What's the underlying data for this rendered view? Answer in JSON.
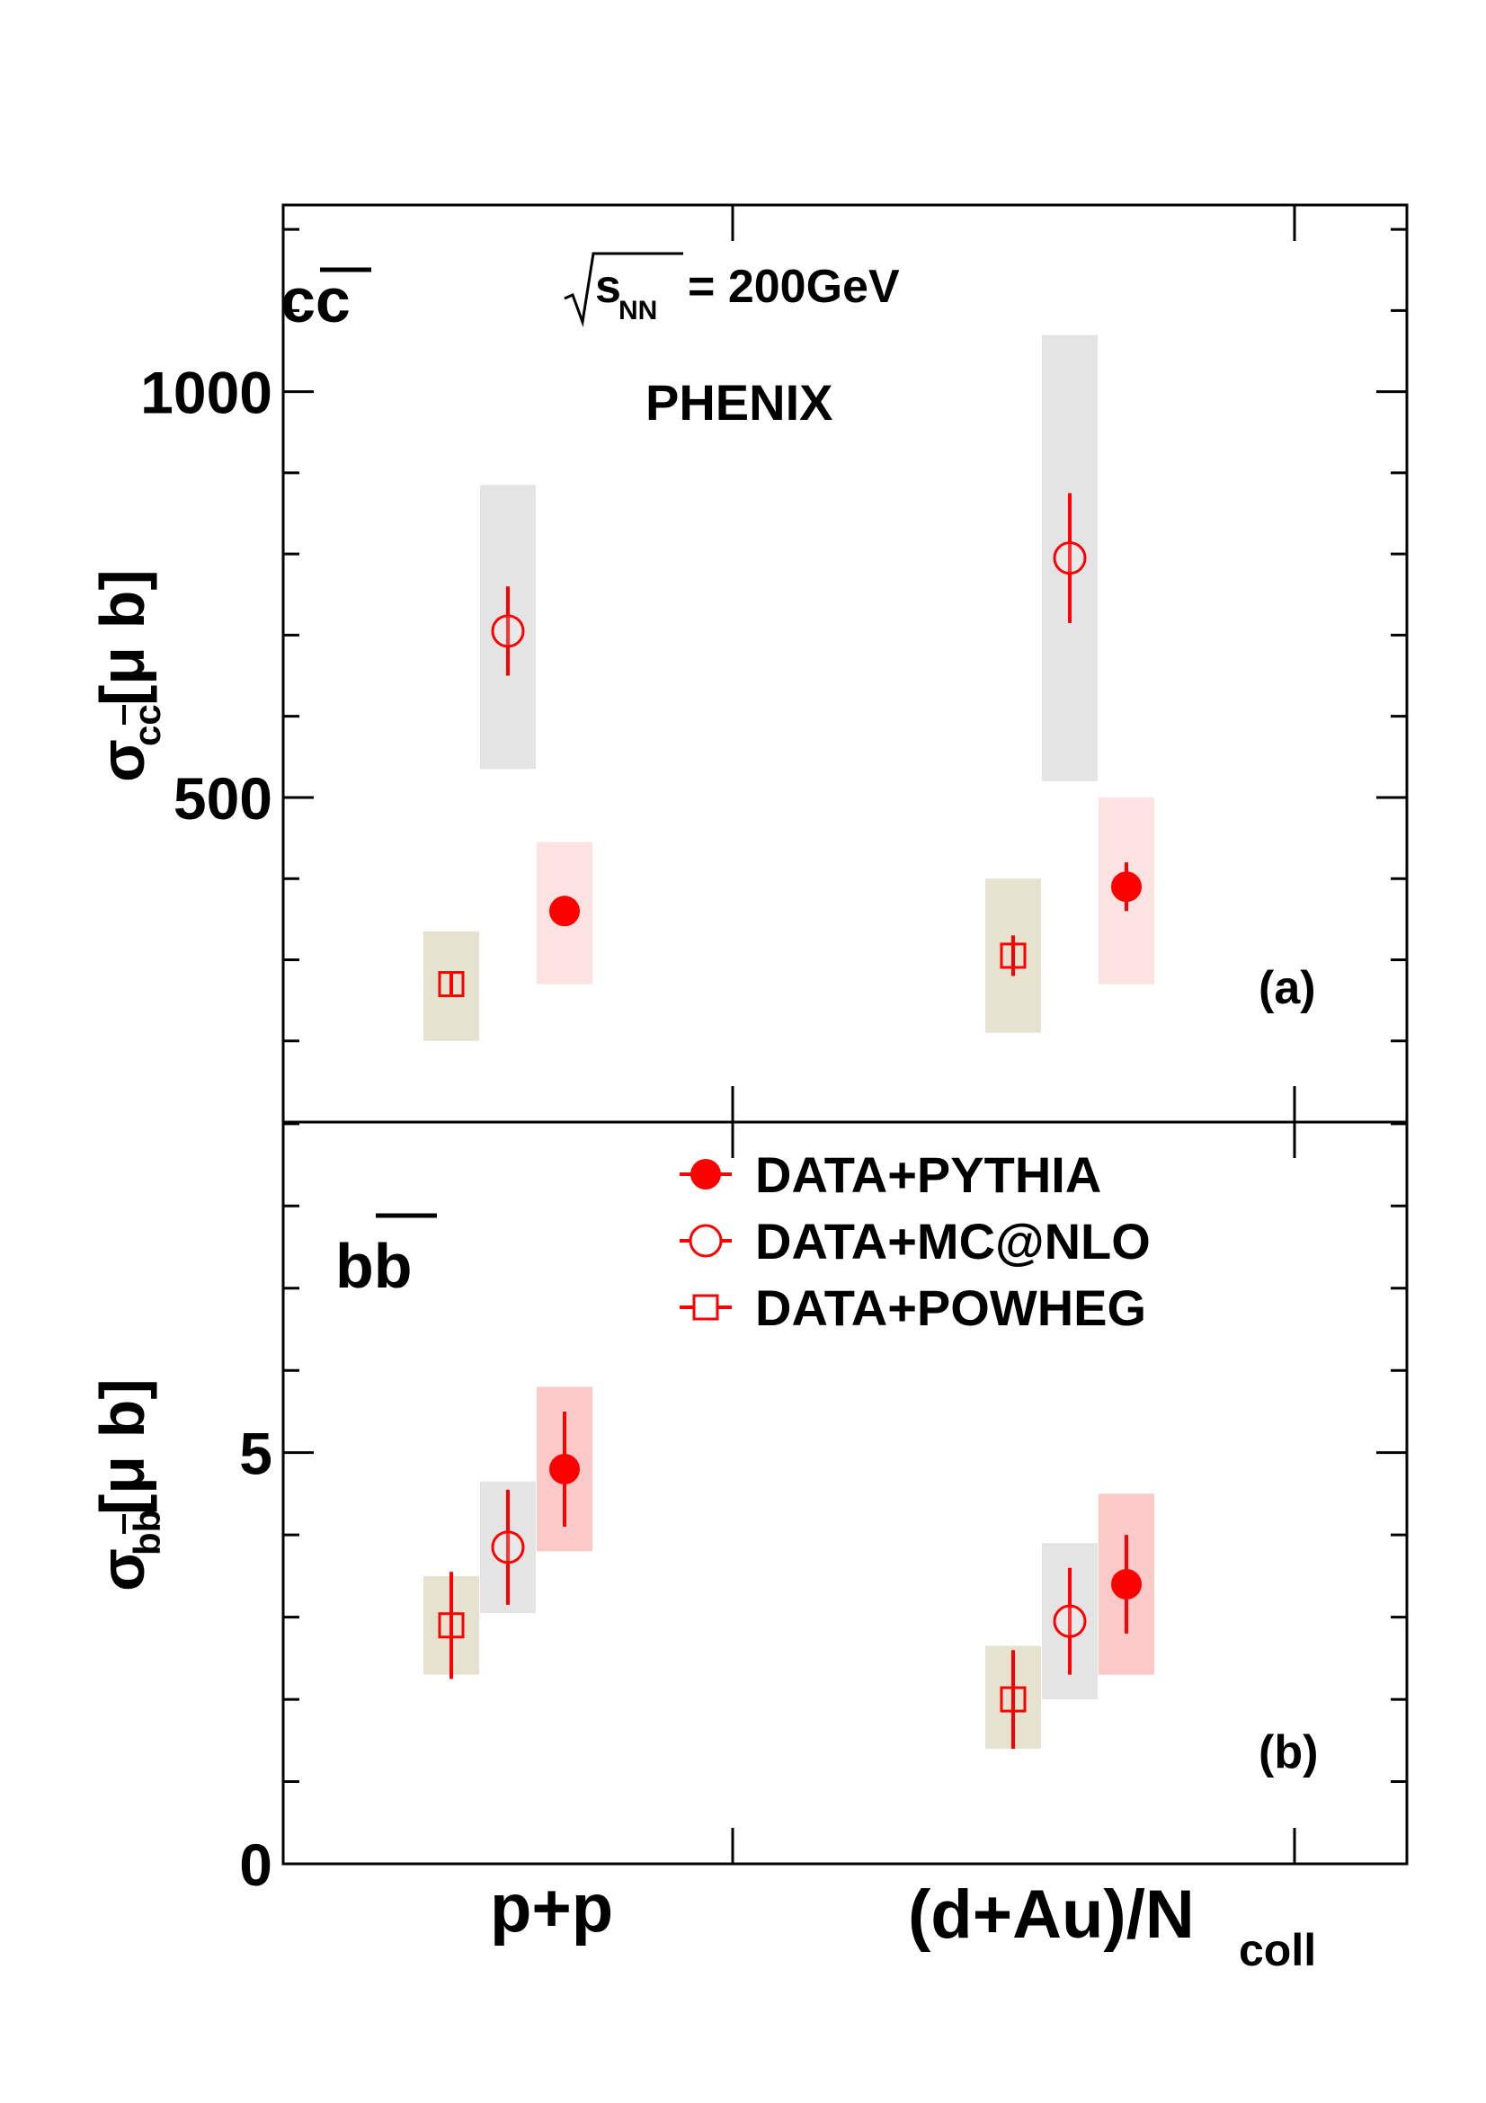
{
  "chart_data": [
    {
      "panel": "a",
      "type": "scatter",
      "quark_label": "cc",
      "energy_label": "s",
      "energy_sub": "NN",
      "energy_value": " = 200GeV",
      "experiment": "PHENIX",
      "panel_label": "(a)",
      "ylabel": "σ",
      "ylabel_sub": "cc",
      "ylabel_unit": " [μ b]",
      "ylim": [
        100,
        1230
      ],
      "yticks": [
        500,
        1000
      ],
      "categories": [
        "p+p",
        "(d+Au)/N"
      ],
      "series": [
        {
          "name": "DATA+PYTHIA",
          "marker": "filled-circle",
          "color": "#ff0000",
          "band_color": "#fde2e2",
          "values": [
            {
              "category": "p+p",
              "y": 360,
              "stat": 15,
              "sys_low": 270,
              "sys_high": 445
            },
            {
              "category": "(d+Au)/N",
              "y": 390,
              "stat": 30,
              "sys_low": 270,
              "sys_high": 500
            }
          ]
        },
        {
          "name": "DATA+MC@NLO",
          "marker": "open-circle",
          "color": "#ff0000",
          "band_color": "#e4e4e4",
          "values": [
            {
              "category": "p+p",
              "y": 705,
              "stat": 55,
              "sys_low": 535,
              "sys_high": 885
            },
            {
              "category": "(d+Au)/N",
              "y": 795,
              "stat": 80,
              "sys_low": 520,
              "sys_high": 1070
            }
          ]
        },
        {
          "name": "DATA+POWHEG",
          "marker": "open-square",
          "color": "#ff0000",
          "band_color": "#e5e3d0",
          "values": [
            {
              "category": "p+p",
              "y": 270,
              "stat": 15,
              "sys_low": 200,
              "sys_high": 335
            },
            {
              "category": "(d+Au)/N",
              "y": 305,
              "stat": 25,
              "sys_low": 210,
              "sys_high": 400
            }
          ]
        }
      ]
    },
    {
      "panel": "b",
      "type": "scatter",
      "quark_label": "bb",
      "panel_label": "(b)",
      "ylabel": "σ",
      "ylabel_sub": "bb",
      "ylabel_unit": " [μ b]",
      "ylim": [
        0,
        9.02
      ],
      "yticks": [
        0,
        5
      ],
      "categories": [
        "p+p",
        "(d+Au)/N"
      ],
      "xlabel_sub": "coll",
      "legend": {
        "placement": "top-center",
        "entries": [
          "DATA+PYTHIA",
          "DATA+MC@NLO",
          "DATA+POWHEG"
        ]
      },
      "series": [
        {
          "name": "DATA+PYTHIA",
          "marker": "filled-circle",
          "color": "#ff0000",
          "band_color": "#fcc9c9",
          "values": [
            {
              "category": "p+p",
              "y": 4.8,
              "stat": 0.7,
              "sys_low": 3.8,
              "sys_high": 5.8
            },
            {
              "category": "(d+Au)/N",
              "y": 3.4,
              "stat": 0.6,
              "sys_low": 2.3,
              "sys_high": 4.5
            }
          ]
        },
        {
          "name": "DATA+MC@NLO",
          "marker": "open-circle",
          "color": "#ff0000",
          "band_color": "#e4e4e4",
          "values": [
            {
              "category": "p+p",
              "y": 3.85,
              "stat": 0.7,
              "sys_low": 3.05,
              "sys_high": 4.65
            },
            {
              "category": "(d+Au)/N",
              "y": 2.95,
              "stat": 0.65,
              "sys_low": 2.0,
              "sys_high": 3.9
            }
          ]
        },
        {
          "name": "DATA+POWHEG",
          "marker": "open-square",
          "color": "#ff0000",
          "band_color": "#e5e3d0",
          "values": [
            {
              "category": "p+p",
              "y": 2.9,
              "stat": 0.65,
              "sys_low": 2.3,
              "sys_high": 3.5
            },
            {
              "category": "(d+Au)/N",
              "y": 2.0,
              "stat": 0.6,
              "sys_low": 1.4,
              "sys_high": 2.65
            }
          ]
        }
      ]
    }
  ]
}
